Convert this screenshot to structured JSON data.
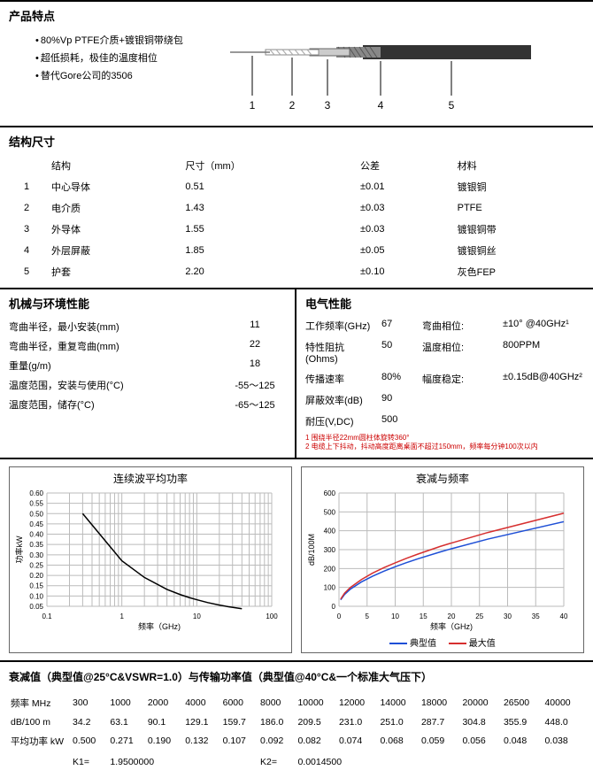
{
  "features": {
    "title": "产品特点",
    "items": [
      "80%Vp PTFE介质+镀银铜带绕包",
      "超低损耗，极佳的温度相位",
      "替代Gore公司的3506"
    ],
    "layer_labels": [
      "1",
      "2",
      "3",
      "4",
      "5"
    ]
  },
  "structure": {
    "title": "结构尺寸",
    "headers": [
      "",
      "结构",
      "尺寸（mm）",
      "公差",
      "材料"
    ],
    "rows": [
      [
        "1",
        "中心导体",
        "0.51",
        "±0.01",
        "镀银铜"
      ],
      [
        "2",
        "电介质",
        "1.43",
        "±0.03",
        "PTFE"
      ],
      [
        "3",
        "外导体",
        "1.55",
        "±0.03",
        "镀银铜带"
      ],
      [
        "4",
        "外层屏蔽",
        "1.85",
        "±0.05",
        "镀银铜丝"
      ],
      [
        "5",
        "护套",
        "2.20",
        "±0.10",
        "灰色FEP"
      ]
    ]
  },
  "mechanical": {
    "title": "机械与环境性能",
    "rows": [
      {
        "label": "弯曲半径，最小安装(mm)",
        "val": "11"
      },
      {
        "label": "弯曲半径，重复弯曲(mm)",
        "val": "22"
      },
      {
        "label": "重量(g/m)",
        "val": "18"
      },
      {
        "label": "温度范围，安装与使用(°C)",
        "val": "-55～125"
      },
      {
        "label": "温度范围，储存(°C)",
        "val": "-65～125"
      }
    ]
  },
  "electrical": {
    "title": "电气性能",
    "cells": [
      [
        "工作频率(GHz)",
        "67",
        "弯曲相位:",
        "±10° @40GHz¹"
      ],
      [
        "特性阻抗(Ohms)",
        "50",
        "温度相位:",
        "800PPM"
      ],
      [
        "传播速率",
        "80%",
        "幅度稳定:",
        "±0.15dB@40GHz²"
      ],
      [
        "屏蔽效率(dB)",
        "90",
        "",
        ""
      ],
      [
        "耐压(V,DC)",
        "500",
        "",
        ""
      ]
    ],
    "footnotes": [
      "1 围绕半径22mm圆柱体旋转360°",
      "2 电缆上下抖动，抖动高度距离桌面不超过150mm，频率每分钟100次以内"
    ]
  },
  "chart1": {
    "title": "连续波平均功率",
    "xlabel": "频率（GHz)",
    "ylabel": "功率kW",
    "xticks": [
      "0.1",
      "1",
      "10",
      "100"
    ],
    "yticks": [
      "0.05",
      "0.10",
      "0.15",
      "0.20",
      "0.25",
      "0.30",
      "0.35",
      "0.40",
      "0.45",
      "0.50",
      "0.55",
      "0.60"
    ],
    "line_color": "#000000",
    "grid_color": "#bbbbbb",
    "points": [
      [
        0.3,
        0.5
      ],
      [
        1,
        0.271
      ],
      [
        2,
        0.19
      ],
      [
        4,
        0.132
      ],
      [
        6,
        0.107
      ],
      [
        8,
        0.092
      ],
      [
        10,
        0.082
      ],
      [
        14,
        0.068
      ],
      [
        20,
        0.056
      ],
      [
        26.5,
        0.048
      ],
      [
        40,
        0.038
      ]
    ]
  },
  "chart2": {
    "title": "衰减与频率",
    "xlabel": "频率（GHz)",
    "ylabel": "dB/100M",
    "xticks": [
      "0",
      "5",
      "10",
      "15",
      "20",
      "25",
      "30",
      "35",
      "40"
    ],
    "yticks": [
      "0",
      "100",
      "200",
      "300",
      "400",
      "500",
      "600"
    ],
    "grid_color": "#bbbbbb",
    "series": [
      {
        "name": "典型值",
        "color": "#1e4fd6",
        "points": [
          [
            0.3,
            34.2
          ],
          [
            1,
            63.1
          ],
          [
            2,
            90.1
          ],
          [
            4,
            129.1
          ],
          [
            6,
            159.7
          ],
          [
            8,
            186
          ],
          [
            10,
            209.5
          ],
          [
            12,
            231
          ],
          [
            14,
            251
          ],
          [
            18,
            287.7
          ],
          [
            20,
            304.8
          ],
          [
            26.5,
            355.9
          ],
          [
            40,
            448
          ]
        ]
      },
      {
        "name": "最大值",
        "color": "#d62f2f",
        "points": [
          [
            0.3,
            38
          ],
          [
            1,
            70
          ],
          [
            2,
            99
          ],
          [
            4,
            142
          ],
          [
            6,
            176
          ],
          [
            8,
            205
          ],
          [
            10,
            230
          ],
          [
            12,
            254
          ],
          [
            14,
            276
          ],
          [
            18,
            317
          ],
          [
            20,
            335
          ],
          [
            26.5,
            391
          ],
          [
            40,
            493
          ]
        ]
      }
    ],
    "legend": [
      "典型值",
      "最大值"
    ]
  },
  "attenuation": {
    "title": "衰减值（典型值@25°C&VSWR=1.0）与传输功率值（典型值@40°C&一个标准大气压下）",
    "headers": [
      "频率 MHz",
      "300",
      "1000",
      "2000",
      "4000",
      "6000",
      "8000",
      "10000",
      "12000",
      "14000",
      "18000",
      "20000",
      "26500",
      "40000"
    ],
    "rows": [
      [
        "dB/100 m",
        "34.2",
        "63.1",
        "90.1",
        "129.1",
        "159.7",
        "186.0",
        "209.5",
        "231.0",
        "251.0",
        "287.7",
        "304.8",
        "355.9",
        "448.0"
      ],
      [
        "平均功率 kW",
        "0.500",
        "0.271",
        "0.190",
        "0.132",
        "0.107",
        "0.092",
        "0.082",
        "0.074",
        "0.068",
        "0.059",
        "0.056",
        "0.048",
        "0.038"
      ]
    ],
    "k1_label": "K1=",
    "k1": "1.9500000",
    "k2_label": "K2=",
    "k2": "0.0014500"
  }
}
